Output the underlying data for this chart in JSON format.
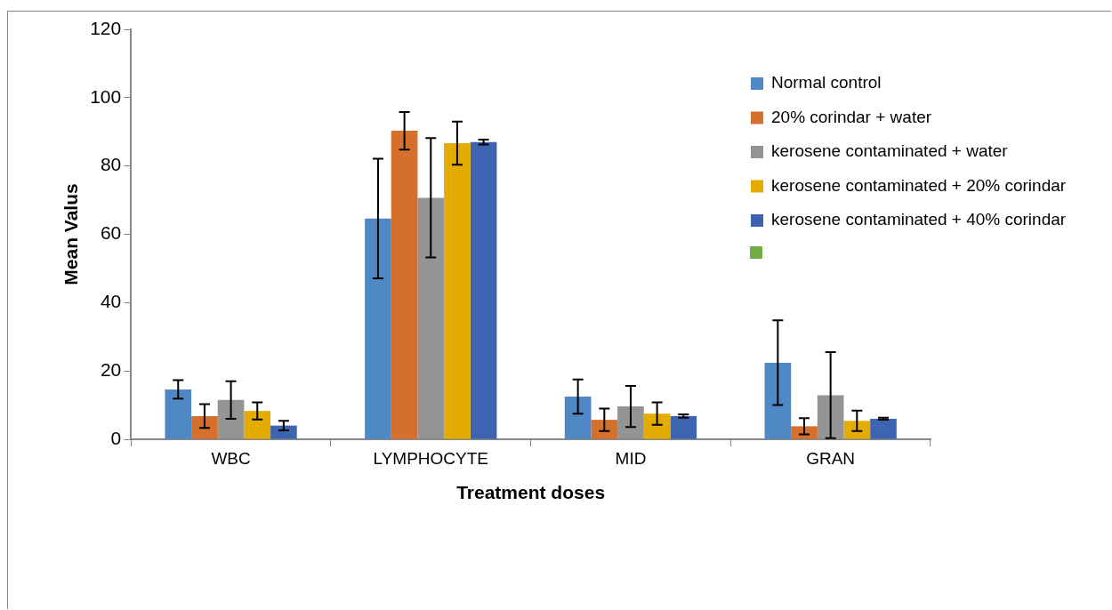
{
  "chart_data": {
    "type": "bar",
    "xlabel": "Treatment doses",
    "ylabel": "Mean Valus",
    "categories": [
      "WBC",
      "LYMPHOCYTE",
      "MID",
      "GRAN"
    ],
    "ylim": [
      0,
      120
    ],
    "yticks": [
      0,
      20,
      40,
      60,
      80,
      100,
      120
    ],
    "grid": false,
    "legend": "right",
    "series": [
      {
        "name": "Normal control",
        "color": "#4f88c4",
        "values": [
          14.6,
          64.6,
          12.5,
          22.4
        ],
        "errors": [
          2.7,
          17.5,
          5,
          12.4
        ]
      },
      {
        "name": "20% corindar + water",
        "color": "#d4702b",
        "values": [
          6.8,
          90.3,
          5.7,
          3.8
        ],
        "errors": [
          3.5,
          5.5,
          3.3,
          2.4
        ]
      },
      {
        "name": "kerosene contaminated + water",
        "color": "#949494",
        "values": [
          11.5,
          70.7,
          9.6,
          12.9
        ],
        "errors": [
          5.5,
          17.5,
          6,
          12.6
        ]
      },
      {
        "name": "kerosene contaminated + 20% corindar",
        "color": "#e4ac00",
        "values": [
          8.3,
          86.7,
          7.5,
          5.4
        ],
        "errors": [
          2.5,
          6.3,
          3.3,
          3
        ]
      },
      {
        "name": "kerosene contaminated + 40% corindar",
        "color": "#3d64b0",
        "values": [
          4.0,
          87.0,
          6.8,
          6.0
        ],
        "errors": [
          1.4,
          0.7,
          0.5,
          0.3
        ]
      }
    ]
  }
}
